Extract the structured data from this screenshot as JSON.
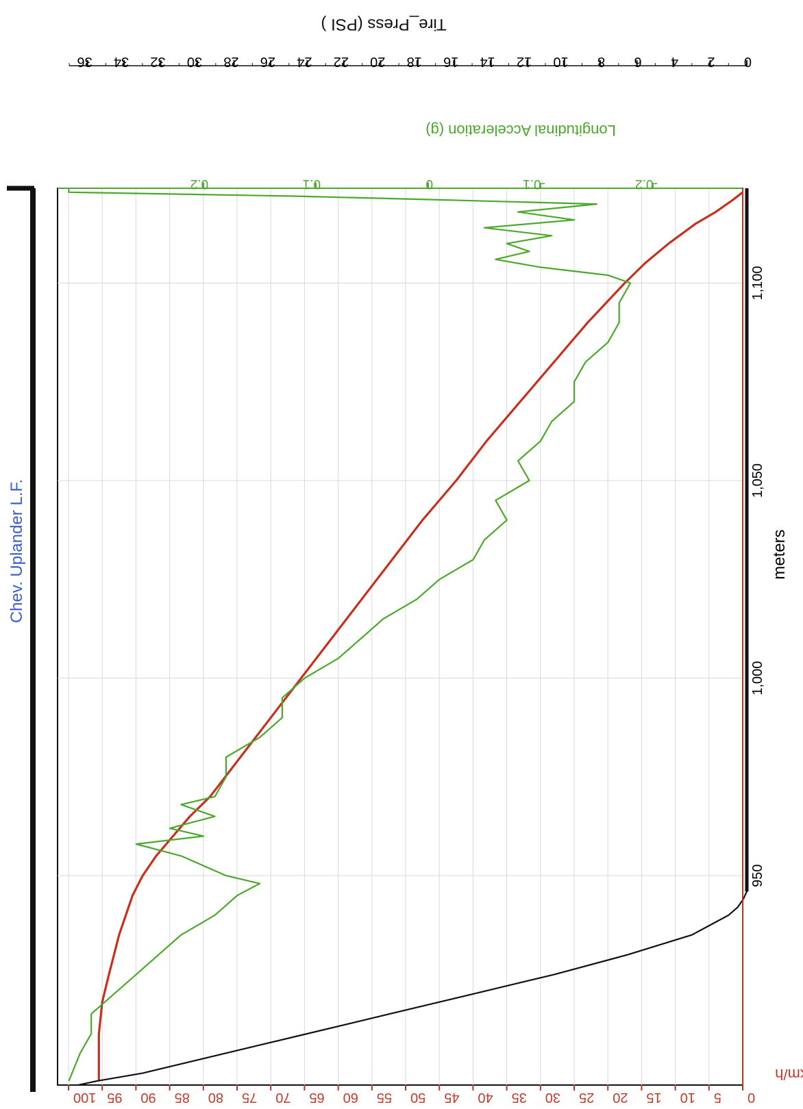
{
  "colors": {
    "speed": "#c8301e",
    "accel": "#4aa82a",
    "pressure": "#111111",
    "title": "#3a5fc9",
    "grid": "#d8d8d8"
  },
  "chart_data": {
    "type": "line",
    "orientation": "rotated-90-clockwise",
    "title": "Chev. Uplander L.F.",
    "xlabel": "meters",
    "x_ticks": [
      "950",
      "1,000",
      "1,050",
      "1,100"
    ],
    "xlim": [
      897,
      1124
    ],
    "axes": {
      "speed": {
        "label": "km/h",
        "ticks": [
          "100",
          "95",
          "90",
          "85",
          "80",
          "75",
          "70",
          "65",
          "60",
          "55",
          "50",
          "45",
          "40",
          "35",
          "30",
          "25",
          "20",
          "15",
          "10",
          "5",
          "0"
        ],
        "lim": [
          0,
          100
        ]
      },
      "accel": {
        "label": "Longitudinal Acceleration (g)",
        "ticks": [
          "0.2",
          "0.1",
          "0",
          "-0.1",
          "-0.2"
        ],
        "tick_values": [
          0.2,
          0.1,
          0,
          -0.1,
          -0.2
        ],
        "lim": [
          -0.28,
          0.33
        ]
      },
      "pressure": {
        "label": "Tire_Press (PSI      )",
        "ticks": [
          "36",
          "34",
          "32",
          "30",
          "28",
          "26",
          "24",
          "22",
          "20",
          "18",
          "16",
          "14",
          "12",
          "10",
          "8",
          "6",
          "4",
          "2",
          "0"
        ],
        "lim": [
          0,
          37
        ]
      }
    },
    "series": [
      {
        "name": "km/h",
        "color": "#c8301e",
        "x": [
          898,
          910,
          918,
          925,
          935,
          945,
          950,
          955,
          960,
          965,
          970,
          980,
          990,
          1000,
          1010,
          1020,
          1030,
          1040,
          1050,
          1060,
          1070,
          1080,
          1090,
          1100,
          1105,
          1110,
          1115,
          1118,
          1121,
          1123
        ],
        "y": [
          95.5,
          95.5,
          95,
          94,
          92.5,
          90.5,
          89,
          87,
          84.5,
          82,
          79,
          74.5,
          70,
          65.5,
          61,
          56.5,
          52,
          47.5,
          42.5,
          38,
          33,
          28,
          23,
          17.5,
          14.5,
          11,
          7,
          4,
          1.5,
          0
        ]
      },
      {
        "name": "Longitudinal Acceleration (g)",
        "color": "#4aa82a",
        "x": [
          898,
          905,
          910,
          915,
          920,
          925,
          930,
          935,
          940,
          945,
          948,
          950,
          955,
          958,
          960,
          962,
          965,
          968,
          970,
          975,
          980,
          985,
          990,
          995,
          1000,
          1005,
          1010,
          1015,
          1020,
          1025,
          1030,
          1035,
          1040,
          1045,
          1050,
          1055,
          1060,
          1065,
          1070,
          1075,
          1080,
          1085,
          1090,
          1095,
          1100,
          1102,
          1104,
          1106,
          1108,
          1110,
          1112,
          1114,
          1116,
          1118,
          1120,
          1121,
          1122,
          1123,
          1124
        ],
        "y": [
          0.32,
          0.31,
          0.3,
          0.3,
          0.28,
          0.26,
          0.24,
          0.22,
          0.19,
          0.17,
          0.15,
          0.18,
          0.22,
          0.26,
          0.2,
          0.23,
          0.19,
          0.22,
          0.19,
          0.18,
          0.18,
          0.15,
          0.13,
          0.13,
          0.11,
          0.08,
          0.06,
          0.04,
          0.01,
          -0.01,
          -0.04,
          -0.05,
          -0.07,
          -0.06,
          -0.09,
          -0.08,
          -0.1,
          -0.11,
          -0.13,
          -0.13,
          -0.14,
          -0.16,
          -0.17,
          -0.17,
          -0.18,
          -0.16,
          -0.1,
          -0.06,
          -0.09,
          -0.07,
          -0.11,
          -0.05,
          -0.13,
          -0.08,
          -0.15,
          -0.02,
          0.12,
          0.32,
          0.32
        ]
      },
      {
        "name": "Tire_Press (PSI      )",
        "color": "#111111",
        "x": [
          897,
          898,
          900,
          905,
          910,
          915,
          920,
          925,
          930,
          935,
          940,
          942,
          944,
          946,
          1124
        ],
        "y": [
          36.5,
          35.5,
          33,
          28.5,
          24,
          19.5,
          15,
          10.5,
          6.5,
          3,
          1,
          0.5,
          0.2,
          0,
          0
        ]
      }
    ],
    "grid": true,
    "legend": "none"
  }
}
